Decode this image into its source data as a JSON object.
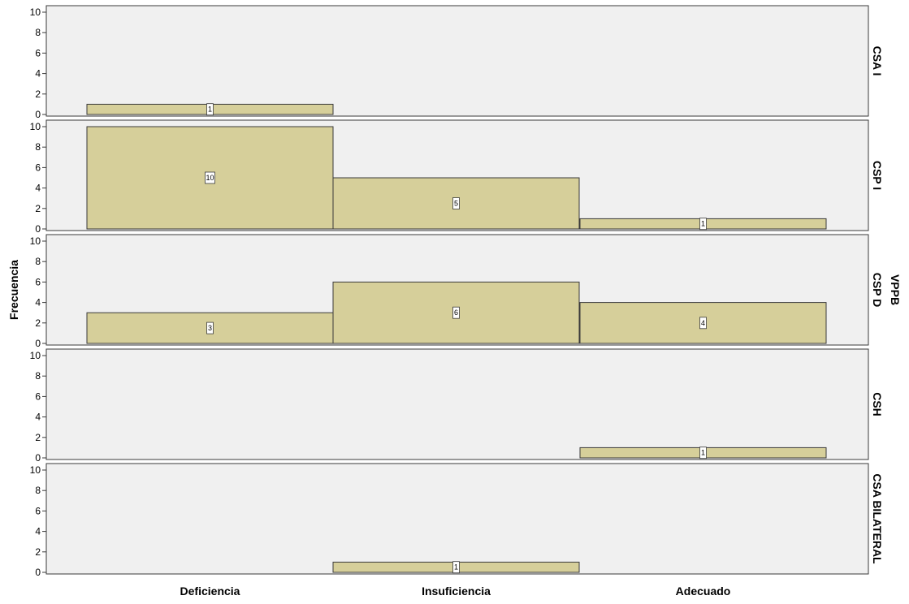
{
  "chart_data": {
    "type": "bar",
    "ylabel": "Frecuencia",
    "facet_label": "VPPB",
    "categories": [
      "Deficiencia",
      "Insuficiencia",
      "Adecuado"
    ],
    "ylim": [
      0,
      10
    ],
    "yticks": [
      "0",
      "2",
      "4",
      "6",
      "8",
      "10"
    ],
    "panels": [
      {
        "name": "CSA I",
        "values": [
          1,
          null,
          null
        ]
      },
      {
        "name": "CSP I",
        "values": [
          10,
          5,
          1
        ]
      },
      {
        "name": "CSP D",
        "values": [
          3,
          6,
          4
        ]
      },
      {
        "name": "CSH",
        "values": [
          null,
          null,
          1
        ]
      },
      {
        "name": "CSA BILATERAL",
        "values": [
          null,
          1,
          null
        ]
      }
    ],
    "colors": {
      "bar": "#d6cf9a",
      "panel_bg": "#f0f0f0",
      "outline": "#3a3a3a"
    },
    "grid": false
  }
}
